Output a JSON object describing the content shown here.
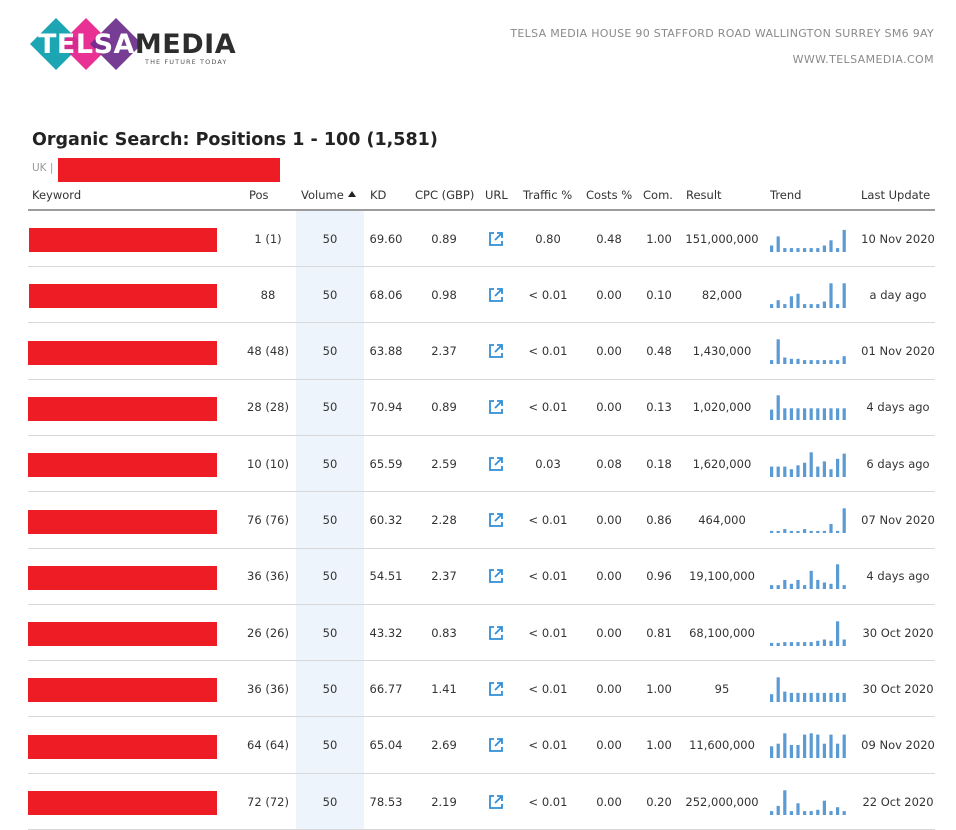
{
  "brand": {
    "logo_telsa": "TELSA",
    "logo_media": "MEDIA",
    "tagline": "THE FUTURE TODAY",
    "colors": {
      "teal": "#1ca6b4",
      "pink": "#e6208a",
      "purple": "#6b2d8c",
      "red_redaction": "#ee1c24",
      "trend_blue": "#5b9bd5"
    }
  },
  "header": {
    "address": "TELSA MEDIA HOUSE 90 STAFFORD ROAD WALLINGTON SURREY SM6 9AY",
    "website": "WWW.TELSAMEDIA.COM"
  },
  "report": {
    "title": "Organic Search: Positions 1 - 100 (1,581)",
    "region": "UK |"
  },
  "table": {
    "columns": {
      "keyword": "Keyword",
      "pos": "Pos",
      "volume": "Volume",
      "kd": "KD",
      "cpc": "CPC (GBP)",
      "url": "URL",
      "traffic": "Traffic %",
      "costs": "Costs %",
      "com": "Com.",
      "result": "Result",
      "trend": "Trend",
      "last_update": "Last Update"
    },
    "sort_icon": "sort-ascending-icon",
    "url_icon": "external-link-icon",
    "rows": [
      {
        "pos": "1 (1)",
        "volume": "50",
        "kd": "69.60",
        "cpc": "0.89",
        "traffic": "0.80",
        "costs": "0.48",
        "com": "1.00",
        "result": "151,000,000",
        "last_update": "10 Nov 2020",
        "trend": [
          0.25,
          0.6,
          0.15,
          0.15,
          0.15,
          0.15,
          0.15,
          0.15,
          0.25,
          0.45,
          0.15,
          0.85
        ]
      },
      {
        "pos": "88",
        "volume": "50",
        "kd": "68.06",
        "cpc": "0.98",
        "traffic": "< 0.01",
        "costs": "0.00",
        "com": "0.10",
        "result": "82,000",
        "last_update": "a day ago",
        "trend": [
          0.15,
          0.3,
          0.15,
          0.45,
          0.55,
          0.15,
          0.15,
          0.15,
          0.25,
          0.95,
          0.15,
          0.95
        ]
      },
      {
        "pos": "48 (48)",
        "volume": "50",
        "kd": "63.88",
        "cpc": "2.37",
        "traffic": "< 0.01",
        "costs": "0.00",
        "com": "0.48",
        "result": "1,430,000",
        "last_update": "01 Nov 2020",
        "trend": [
          0.15,
          0.95,
          0.25,
          0.2,
          0.2,
          0.15,
          0.15,
          0.15,
          0.15,
          0.15,
          0.15,
          0.3
        ]
      },
      {
        "pos": "28 (28)",
        "volume": "50",
        "kd": "70.94",
        "cpc": "0.89",
        "traffic": "< 0.01",
        "costs": "0.00",
        "com": "0.13",
        "result": "1,020,000",
        "last_update": "4 days ago",
        "trend": [
          0.4,
          0.95,
          0.45,
          0.45,
          0.45,
          0.45,
          0.45,
          0.45,
          0.45,
          0.45,
          0.45,
          0.45
        ]
      },
      {
        "pos": "10 (10)",
        "volume": "50",
        "kd": "65.59",
        "cpc": "2.59",
        "traffic": "0.03",
        "costs": "0.08",
        "com": "0.18",
        "result": "1,620,000",
        "last_update": "6 days ago",
        "trend": [
          0.4,
          0.4,
          0.4,
          0.3,
          0.45,
          0.55,
          0.95,
          0.4,
          0.6,
          0.3,
          0.7,
          0.9
        ]
      },
      {
        "pos": "76 (76)",
        "volume": "50",
        "kd": "60.32",
        "cpc": "2.28",
        "traffic": "< 0.01",
        "costs": "0.00",
        "com": "0.86",
        "result": "464,000",
        "last_update": "07 Nov 2020",
        "trend": [
          0.08,
          0.08,
          0.15,
          0.08,
          0.08,
          0.15,
          0.08,
          0.08,
          0.08,
          0.35,
          0.08,
          0.95
        ]
      },
      {
        "pos": "36 (36)",
        "volume": "50",
        "kd": "54.51",
        "cpc": "2.37",
        "traffic": "< 0.01",
        "costs": "0.00",
        "com": "0.96",
        "result": "19,100,000",
        "last_update": "4 days ago",
        "trend": [
          0.15,
          0.15,
          0.35,
          0.2,
          0.35,
          0.15,
          0.7,
          0.35,
          0.25,
          0.2,
          0.95,
          0.15
        ]
      },
      {
        "pos": "26 (26)",
        "volume": "50",
        "kd": "43.32",
        "cpc": "0.83",
        "traffic": "< 0.01",
        "costs": "0.00",
        "com": "0.81",
        "result": "68,100,000",
        "last_update": "30 Oct 2020",
        "trend": [
          0.12,
          0.12,
          0.15,
          0.15,
          0.15,
          0.15,
          0.15,
          0.2,
          0.25,
          0.2,
          0.95,
          0.25
        ]
      },
      {
        "pos": "36 (36)",
        "volume": "50",
        "kd": "66.77",
        "cpc": "1.41",
        "traffic": "< 0.01",
        "costs": "0.00",
        "com": "1.00",
        "result": "95",
        "last_update": "30 Oct 2020",
        "trend": [
          0.3,
          0.95,
          0.4,
          0.35,
          0.35,
          0.35,
          0.35,
          0.35,
          0.35,
          0.35,
          0.35,
          0.35
        ]
      },
      {
        "pos": "64 (64)",
        "volume": "50",
        "kd": "65.04",
        "cpc": "2.69",
        "traffic": "< 0.01",
        "costs": "0.00",
        "com": "1.00",
        "result": "11,600,000",
        "last_update": "09 Nov 2020",
        "trend": [
          0.45,
          0.55,
          0.95,
          0.5,
          0.5,
          0.9,
          0.95,
          0.9,
          0.55,
          0.9,
          0.55,
          0.9
        ]
      },
      {
        "pos": "72 (72)",
        "volume": "50",
        "kd": "78.53",
        "cpc": "2.19",
        "traffic": "< 0.01",
        "costs": "0.00",
        "com": "0.20",
        "result": "252,000,000",
        "last_update": "22 Oct 2020",
        "trend": [
          0.15,
          0.35,
          0.95,
          0.15,
          0.45,
          0.15,
          0.15,
          0.2,
          0.55,
          0.15,
          0.3,
          0.15
        ]
      }
    ]
  }
}
